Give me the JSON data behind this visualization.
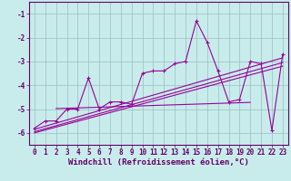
{
  "x": [
    0,
    1,
    2,
    3,
    4,
    5,
    6,
    7,
    8,
    9,
    10,
    11,
    12,
    13,
    14,
    15,
    16,
    17,
    18,
    19,
    20,
    21,
    22,
    23
  ],
  "y": [
    -5.8,
    -5.5,
    -5.5,
    -5.0,
    -5.0,
    -3.7,
    -5.0,
    -4.7,
    -4.7,
    -4.8,
    -3.5,
    -3.4,
    -3.4,
    -3.1,
    -3.0,
    -1.3,
    -2.2,
    -3.4,
    -4.7,
    -4.6,
    -3.0,
    -3.1,
    -5.9,
    -2.7
  ],
  "line_color": "#990099",
  "bg_color": "#c8ecec",
  "grid_color": "#9bbfbf",
  "axis_color": "#660066",
  "spine_color": "#660066",
  "xlabel": "Windchill (Refroidissement éolien,°C)",
  "ylim": [
    -6.5,
    -0.5
  ],
  "xlim": [
    -0.5,
    23.5
  ],
  "yticks": [
    -6,
    -5,
    -4,
    -3,
    -2,
    -1
  ],
  "xticks": [
    0,
    1,
    2,
    3,
    4,
    5,
    6,
    7,
    8,
    9,
    10,
    11,
    12,
    13,
    14,
    15,
    16,
    17,
    18,
    19,
    20,
    21,
    22,
    23
  ],
  "regression_lines": [
    {
      "x0": 0,
      "x1": 23,
      "y0": -5.85,
      "y1": -2.85
    },
    {
      "x0": 0,
      "x1": 23,
      "y0": -5.95,
      "y1": -3.05
    },
    {
      "x0": 0,
      "x1": 23,
      "y0": -6.0,
      "y1": -3.2
    },
    {
      "x0": 2,
      "x1": 20,
      "y0": -4.98,
      "y1": -4.72
    }
  ]
}
